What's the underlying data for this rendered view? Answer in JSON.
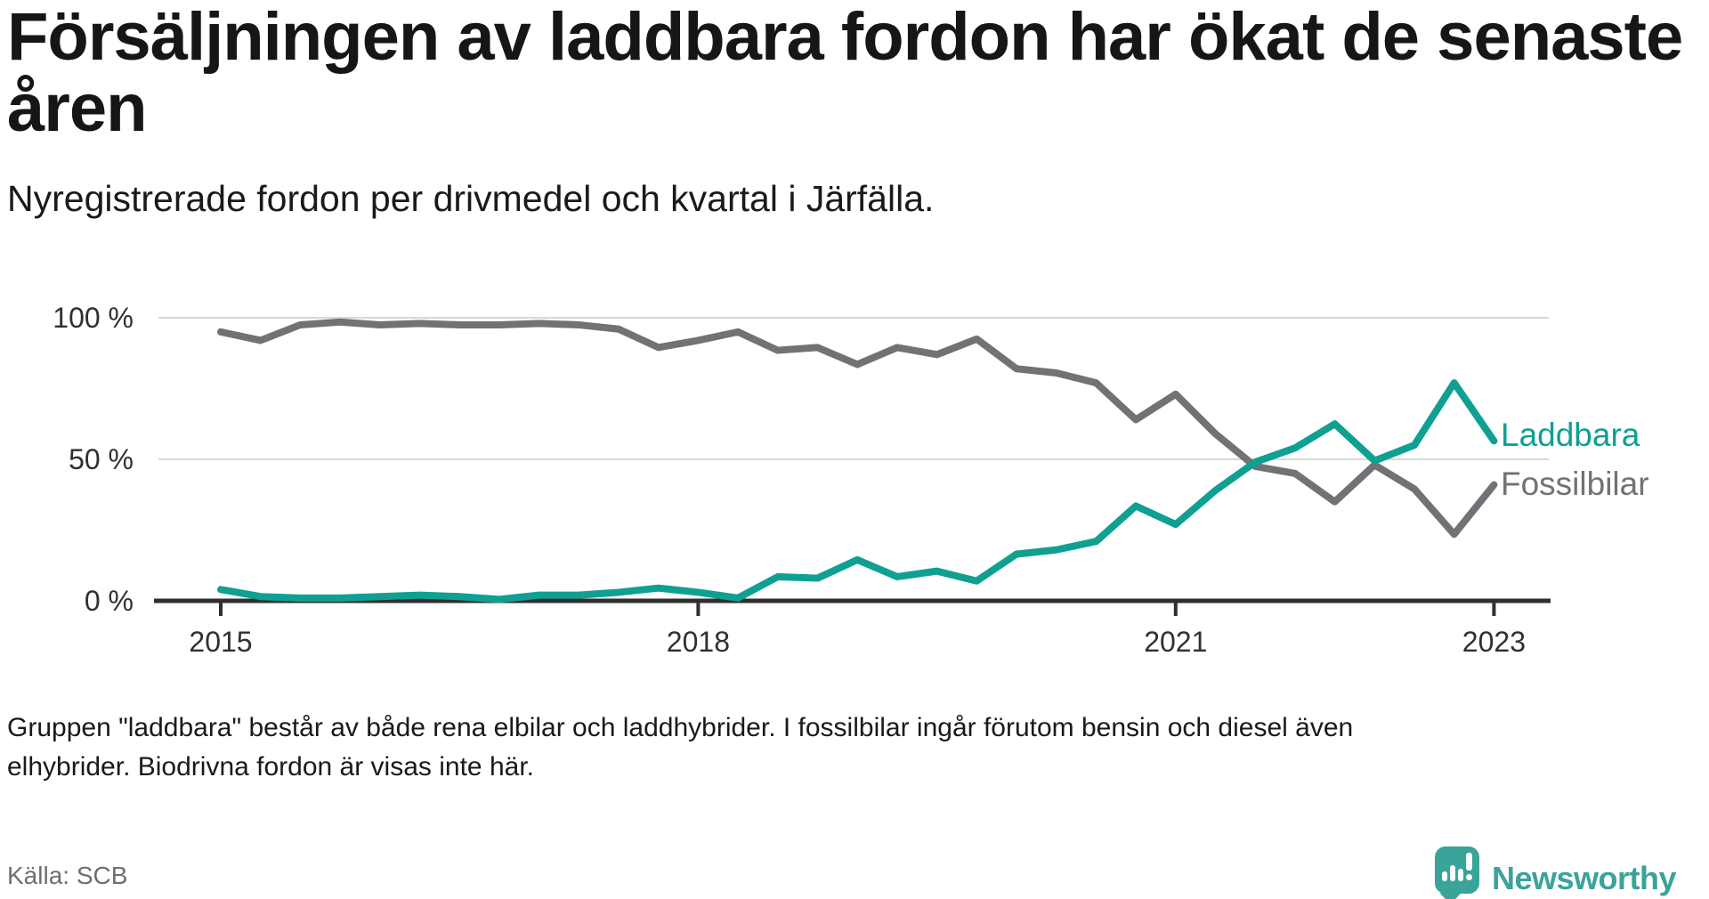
{
  "header": {
    "title": "Försäljningen av laddbara fordon har ökat de senaste åren",
    "title_lines": [
      "Försäljningen av laddbara fordon har ökat de senaste",
      "åren"
    ],
    "subtitle": "Nyregistrerade fordon per drivmedel och kvartal i Järfälla."
  },
  "chart_data": {
    "type": "line",
    "unit": "%",
    "x_frequency": "quarterly",
    "x_start": "2015 Q1",
    "x_end": "2023 Q1",
    "categories": [
      "2015 Q1",
      "2015 Q2",
      "2015 Q3",
      "2015 Q4",
      "2016 Q1",
      "2016 Q2",
      "2016 Q3",
      "2016 Q4",
      "2017 Q1",
      "2017 Q2",
      "2017 Q3",
      "2017 Q4",
      "2018 Q1",
      "2018 Q2",
      "2018 Q3",
      "2018 Q4",
      "2019 Q1",
      "2019 Q2",
      "2019 Q3",
      "2019 Q4",
      "2020 Q1",
      "2020 Q2",
      "2020 Q3",
      "2020 Q4",
      "2021 Q1",
      "2021 Q2",
      "2021 Q3",
      "2021 Q4",
      "2022 Q1",
      "2022 Q2",
      "2022 Q3",
      "2022 Q4",
      "2023 Q1"
    ],
    "series": [
      {
        "name": "Laddbara",
        "color": "#0fa092",
        "values": [
          4,
          1.5,
          1,
          1,
          1.5,
          2,
          1.5,
          0.5,
          2,
          2,
          3,
          4.5,
          3,
          1,
          8.5,
          8,
          14.5,
          8.5,
          10.5,
          7,
          16.5,
          18,
          21,
          33.5,
          27,
          39,
          49,
          54,
          62.5,
          49.5,
          55,
          77,
          56.5
        ]
      },
      {
        "name": "Fossilbilar",
        "color": "#717176",
        "values": [
          95,
          92,
          97.5,
          98.5,
          97.5,
          98,
          97.5,
          97.5,
          98,
          97.5,
          96,
          89.5,
          92,
          95,
          88.5,
          89.5,
          83.5,
          89.5,
          87,
          92.5,
          82,
          80.5,
          77,
          64,
          73,
          59,
          47.5,
          45,
          35,
          48,
          39.5,
          23.5,
          41
        ]
      }
    ],
    "ylim": [
      0,
      100
    ],
    "yticks": [
      {
        "value": 100,
        "label": "100 %"
      },
      {
        "value": 50,
        "label": "50 %"
      },
      {
        "value": 0,
        "label": "0 %"
      }
    ],
    "xticks": [
      {
        "label": "2015",
        "index": 0
      },
      {
        "label": "2018",
        "index": 12
      },
      {
        "label": "2021",
        "index": 24
      },
      {
        "label": "2023",
        "index": 32
      }
    ],
    "grid": "horizontal",
    "legend_position": "right-of-line-ends"
  },
  "footnote": "Gruppen \"laddbara\" består av både rena elbilar och laddhybrider. I fossilbilar ingår förutom bensin och diesel även elhybrider. Biodrivna fordon är visas inte här.",
  "footnote_lines": [
    "Gruppen \"laddbara\" består av både rena elbilar och laddhybrider. I fossilbilar ingår förutom bensin och diesel även",
    "elhybrider. Biodrivna fordon är visas inte här."
  ],
  "source": "Källa: SCB",
  "brand": {
    "name": "Newsworthy",
    "color": "#3aa39a"
  }
}
